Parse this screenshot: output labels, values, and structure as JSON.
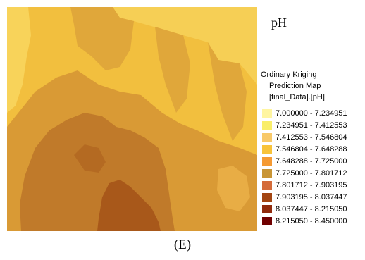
{
  "map": {
    "title": "pH",
    "legend_title_line1": "Ordinary Kriging",
    "legend_title_line2": "Prediction Map",
    "legend_title_line3": "[final_Data].[pH]",
    "classes": [
      {
        "label": "7.000000 - 7.234951",
        "color": "#fff5a0"
      },
      {
        "label": "7.234951 - 7.412553",
        "color": "#f9ee6a"
      },
      {
        "label": "7.412553 - 7.546804",
        "color": "#f8c969"
      },
      {
        "label": "7.546804 - 7.648288",
        "color": "#f8c33a"
      },
      {
        "label": "7.648288 - 7.725000",
        "color": "#f59a33"
      },
      {
        "label": "7.725000 - 7.801712",
        "color": "#c99535"
      },
      {
        "label": "7.801712 - 7.903195",
        "color": "#d46b3a"
      },
      {
        "label": "7.903195 - 8.037447",
        "color": "#a34512"
      },
      {
        "label": "8.037447 - 8.215050",
        "color": "#902a0c"
      },
      {
        "label": "8.215050 - 8.450000",
        "color": "#700000"
      }
    ]
  },
  "caption": "(E)"
}
